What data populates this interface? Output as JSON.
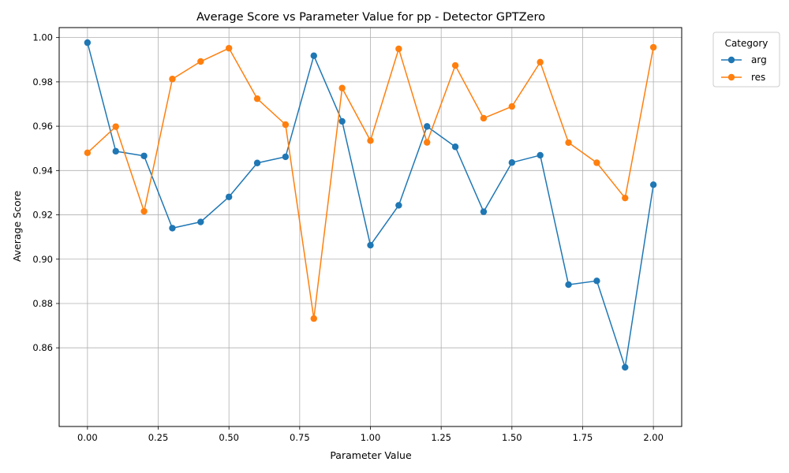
{
  "chart_data": {
    "type": "line",
    "title": "Average Score vs Parameter Value for pp - Detector GPTZero",
    "xlabel": "Parameter Value",
    "ylabel": "Average Score",
    "xlim": [
      -0.1,
      2.1
    ],
    "ylim": [
      0.8245,
      1.0045
    ],
    "xticks": [
      0.0,
      0.25,
      0.5,
      0.75,
      1.0,
      1.25,
      1.5,
      1.75,
      2.0
    ],
    "xtick_labels": [
      "0.00",
      "0.25",
      "0.50",
      "0.75",
      "1.00",
      "1.25",
      "1.50",
      "1.75",
      "2.00"
    ],
    "yticks": [
      0.86,
      0.88,
      0.9,
      0.92,
      0.94,
      0.96,
      0.98,
      1.0
    ],
    "ytick_labels": [
      "0.86",
      "0.88",
      "0.90",
      "0.92",
      "0.94",
      "0.96",
      "0.98",
      "1.00"
    ],
    "grid": true,
    "legend": {
      "title": "Category",
      "placement": "outside-top-right"
    },
    "x": [
      0.0,
      0.1,
      0.2,
      0.3,
      0.4,
      0.5,
      0.6,
      0.7,
      0.8,
      0.9,
      1.0,
      1.1,
      1.2,
      1.3,
      1.4,
      1.5,
      1.6,
      1.7,
      1.8,
      1.9,
      2.0
    ],
    "series": [
      {
        "name": "arg",
        "color": "#1f77b4",
        "values": [
          0.9977,
          0.9487,
          0.9466,
          0.914,
          0.9168,
          0.9281,
          0.9434,
          0.9462,
          0.9918,
          0.9622,
          0.9063,
          0.9243,
          0.9599,
          0.9507,
          0.9214,
          0.9436,
          0.9469,
          0.8885,
          0.8902,
          0.8512,
          0.9336
        ]
      },
      {
        "name": "res",
        "color": "#ff7f0e",
        "values": [
          0.948,
          0.9598,
          0.9216,
          0.9813,
          0.9892,
          0.9952,
          0.9724,
          0.9607,
          0.8732,
          0.9772,
          0.9535,
          0.9949,
          0.9527,
          0.9874,
          0.9636,
          0.9689,
          0.9889,
          0.9526,
          0.9435,
          0.9276,
          0.9956
        ]
      }
    ]
  }
}
